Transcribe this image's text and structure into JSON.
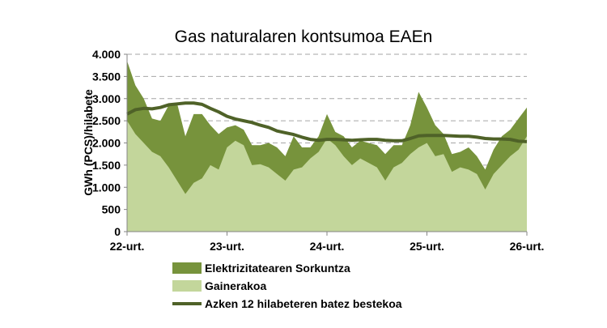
{
  "chart_data": {
    "type": "area",
    "title": "Gas naturalaren kontsumoa EAEn",
    "ylabel": "GWh (PCS)/hilabete",
    "xlabel": "",
    "ylim": [
      0,
      4000
    ],
    "yticks": [
      0,
      500,
      1000,
      1500,
      2000,
      2500,
      3000,
      3500,
      4000
    ],
    "ytick_labels": [
      "0",
      "500",
      "1.000",
      "1.500",
      "2.000",
      "2.500",
      "3.000",
      "3.500",
      "4.000"
    ],
    "xtick_labels": [
      "22-urt.",
      "23-urt.",
      "24-urt.",
      "25-urt.",
      "26-urt."
    ],
    "grid": true,
    "legend_placement": "bottom",
    "stacked": true,
    "series": [
      {
        "name": "Elektrizitatearen Sorkuntza",
        "kind": "area",
        "color": "#77933c",
        "values": [
          1350,
          1100,
          1000,
          750,
          800,
          1400,
          1750,
          1300,
          1550,
          1450,
          900,
          800,
          450,
          350,
          350,
          450,
          430,
          550,
          600,
          550,
          750,
          450,
          250,
          350,
          550,
          300,
          450,
          400,
          400,
          450,
          500,
          600,
          500,
          400,
          650,
          1250,
          800,
          700,
          450,
          400,
          350,
          500,
          400,
          450,
          550,
          650,
          600,
          700,
          650
        ]
      },
      {
        "name": "Gainerakoa",
        "kind": "area",
        "color": "#c3d69b",
        "values": [
          2500,
          2200,
          2000,
          1800,
          1700,
          1450,
          1150,
          850,
          1100,
          1200,
          1500,
          1400,
          1900,
          2050,
          1950,
          1500,
          1520,
          1450,
          1300,
          1150,
          1400,
          1450,
          1650,
          1800,
          2100,
          1950,
          1700,
          1500,
          1650,
          1550,
          1450,
          1150,
          1450,
          1550,
          1750,
          1900,
          2000,
          1700,
          1750,
          1350,
          1450,
          1400,
          1300,
          950,
          1300,
          1500,
          1700,
          1850,
          2150
        ]
      },
      {
        "name": "Azken 12 hilabeteren batez bestekoa",
        "kind": "line",
        "color": "#4f6228",
        "values": [
          2650,
          2750,
          2780,
          2770,
          2800,
          2860,
          2880,
          2900,
          2900,
          2870,
          2780,
          2700,
          2600,
          2540,
          2500,
          2460,
          2400,
          2350,
          2270,
          2230,
          2190,
          2130,
          2080,
          2060,
          2080,
          2080,
          2070,
          2060,
          2070,
          2080,
          2080,
          2060,
          2050,
          2050,
          2100,
          2160,
          2170,
          2170,
          2170,
          2160,
          2150,
          2150,
          2130,
          2100,
          2090,
          2090,
          2080,
          2040,
          2030
        ]
      }
    ]
  }
}
